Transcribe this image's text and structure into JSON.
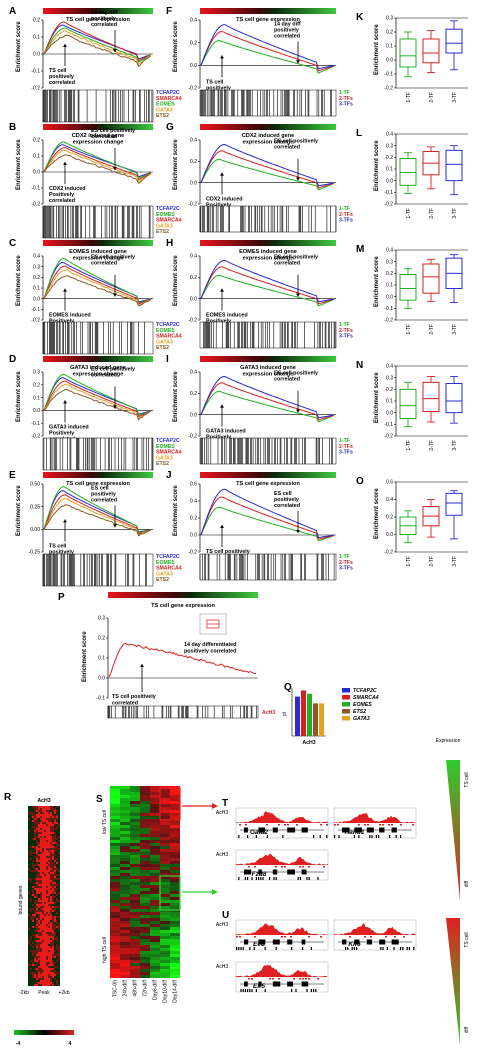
{
  "colors": {
    "TCFAP2C": "#2b2bd0",
    "SMARCA4": "#d42020",
    "EOMES": "#22b022",
    "GATA3": "#e8a020",
    "ETS2": "#8a5a2a",
    "tf1": "#22b022",
    "tf2": "#d42020",
    "tf3": "#2b2bd0",
    "track": "#e02020"
  },
  "y_axis_label": "Enrichment score",
  "left_panels": [
    {
      "label": "A",
      "title": [
        "TS cell gene expression"
      ],
      "ticks": [
        "0.2",
        "0.1",
        "0.0",
        "-0.1",
        "-0.2"
      ],
      "ann_left": [
        "TS cell",
        "positively",
        "correlated"
      ],
      "ann_right": [
        "14 day diff",
        "positively",
        "correlated"
      ],
      "legend": [
        "TCFAP2C",
        "SMARCA4",
        "EOMES",
        "GATA3",
        "ETS2"
      ]
    },
    {
      "label": "B",
      "title": [
        "CDX2 induced gene",
        "expression change"
      ],
      "ticks": [
        "0.2",
        "0.1",
        "0.0",
        "-0.1",
        "-0.2"
      ],
      "ann_left": [
        "CDX2 induced",
        "Positively",
        "correlated"
      ],
      "ann_right": [
        "ES cell positively",
        "correlated"
      ],
      "legend": [
        "TCFAP2C",
        "EOMES",
        "SMARCA4",
        "GATA3",
        "ETS2"
      ]
    },
    {
      "label": "C",
      "title": [
        "EOMES induced gene",
        "expression change"
      ],
      "ticks": [
        "0.4",
        "0.3",
        "0.2",
        "0.1",
        "0.0",
        "-0.1",
        "-0.2"
      ],
      "ann_left": [
        "EOMES induced",
        "Positively",
        "correlated"
      ],
      "ann_right": [
        "ES cell positively",
        "correlated"
      ],
      "legend": [
        "TCFAP2C",
        "EOMES",
        "SMARCA4",
        "GATA3",
        "ETS2"
      ]
    },
    {
      "label": "D",
      "title": [
        "GATA3 induced gene",
        "expression change"
      ],
      "ticks": [
        "0.3",
        "0.2",
        "0.1",
        "0.0",
        "-0.1",
        "-0.2"
      ],
      "ann_left": [
        "GATA3 induced",
        "Positively",
        "correlated"
      ],
      "ann_right": [
        "ES cell positively",
        "correlated"
      ],
      "legend": [
        "TCFAP2C",
        "EOMES",
        "SMARCA4",
        "GATA3",
        "ETS2"
      ]
    },
    {
      "label": "E",
      "title": [
        "TS cell gene expression"
      ],
      "ticks": [
        "0.50",
        "0.25",
        "0.00",
        "-0.25"
      ],
      "ann_left": [
        "TS cell",
        "positively",
        "correlated"
      ],
      "ann_right": [
        "ES cell",
        "positively",
        "correlated"
      ],
      "legend": [
        "TCFAP2C",
        "EOMES",
        "SMARCA4",
        "GATA3",
        "ETS2"
      ]
    }
  ],
  "middle_panels": [
    {
      "label": "F",
      "title": [
        "TS cell gene expression"
      ],
      "ticks": [
        "0.4",
        "0.2",
        "0.0",
        "-0.2"
      ],
      "ann_left": [
        "TS cell",
        "positively",
        "correlated"
      ],
      "ann_right": [
        "14 day diff",
        "positively",
        "correlated"
      ],
      "legend": [
        "1-TF",
        "2-TFs",
        "3-TFs"
      ]
    },
    {
      "label": "G",
      "title": [
        "CDX2 induced gene",
        "expression change"
      ],
      "ticks": [
        "0.4",
        "0.2",
        "0.0",
        "-0.2"
      ],
      "ann_left": [
        "CDX2 induced",
        "Positively",
        "correlated"
      ],
      "ann_right": [
        "ES cell positively",
        "correlated"
      ],
      "legend": [
        "1-TF",
        "2-TFs",
        "3-TFs"
      ]
    },
    {
      "label": "H",
      "title": [
        "EOMES induced gene",
        "expression change"
      ],
      "ticks": [
        "0.4",
        "0.2",
        "0.0",
        "-0.2"
      ],
      "ann_left": [
        "EOMES induced",
        "Positively",
        "correlated"
      ],
      "ann_right": [
        "ES cell positively",
        "correlated"
      ],
      "legend": [
        "1-TF",
        "2-TFs",
        "3-TFs"
      ]
    },
    {
      "label": "I",
      "title": [
        "GATA3 induced gene",
        "expression change"
      ],
      "ticks": [
        "0.4",
        "0.2",
        "0.0",
        "-0.2"
      ],
      "ann_left": [
        "GATA3 induced",
        "Positively",
        "correlated"
      ],
      "ann_right": [
        "ES cell positively",
        "correlated"
      ],
      "legend": [
        "1-TF",
        "2-TFs",
        "3-TFs"
      ]
    },
    {
      "label": "J",
      "title": [
        "TS cell gene expression"
      ],
      "ticks": [
        "0.6",
        "0.4",
        "0.2",
        "0.0",
        "-0.2"
      ],
      "ann_left": [
        "TS cell positively",
        "correlated"
      ],
      "ann_right": [
        "ES cell",
        "positively",
        "correlated"
      ],
      "legend": [
        "1-TF",
        "2-TFs",
        "3-TFs"
      ]
    }
  ],
  "box_panels": [
    {
      "label": "K",
      "ticks": [
        "0.3",
        "0.2",
        "0.1",
        "0.0",
        "-0.1",
        "-0.2"
      ],
      "categories": [
        "1-TF",
        "2-TF",
        "3-TF"
      ],
      "ylim": [
        -0.2,
        0.3
      ],
      "boxes": [
        {
          "min": -0.12,
          "q1": -0.05,
          "med": 0.03,
          "q3": 0.15,
          "max": 0.2
        },
        {
          "min": -0.09,
          "q1": -0.02,
          "med": 0.05,
          "q3": 0.15,
          "max": 0.21
        },
        {
          "min": -0.07,
          "q1": 0.05,
          "med": 0.12,
          "q3": 0.22,
          "max": 0.28
        }
      ]
    },
    {
      "label": "L",
      "ticks": [
        "0.4",
        "0.3",
        "0.2",
        "0.1",
        "0.0",
        "-0.1",
        "-0.2"
      ],
      "categories": [
        "1-TF",
        "2-TF",
        "3-TF"
      ],
      "ylim": [
        -0.2,
        0.4
      ],
      "boxes": [
        {
          "min": -0.11,
          "q1": -0.04,
          "med": 0.07,
          "q3": 0.19,
          "max": 0.24
        },
        {
          "min": -0.07,
          "q1": 0.05,
          "med": 0.15,
          "q3": 0.25,
          "max": 0.29
        },
        {
          "min": -0.12,
          "q1": 0.0,
          "med": 0.14,
          "q3": 0.26,
          "max": 0.3
        }
      ]
    },
    {
      "label": "M",
      "ticks": [
        "0.4",
        "0.3",
        "0.2",
        "0.1",
        "0.0",
        "-0.1",
        "-0.2"
      ],
      "categories": [
        "1-TF",
        "2-TF",
        "3-TF"
      ],
      "ylim": [
        -0.2,
        0.4
      ],
      "boxes": [
        {
          "min": -0.1,
          "q1": -0.03,
          "med": 0.07,
          "q3": 0.19,
          "max": 0.24
        },
        {
          "min": -0.04,
          "q1": 0.03,
          "med": 0.17,
          "q3": 0.28,
          "max": 0.32
        },
        {
          "min": -0.05,
          "q1": 0.07,
          "med": 0.2,
          "q3": 0.33,
          "max": 0.36
        }
      ]
    },
    {
      "label": "N",
      "ticks": [
        "0.4",
        "0.3",
        "0.2",
        "0.1",
        "0.0",
        "-0.1",
        "-0.2"
      ],
      "categories": [
        "1-TF",
        "2-TF",
        "3-TF"
      ],
      "ylim": [
        -0.2,
        0.4
      ],
      "boxes": [
        {
          "min": -0.12,
          "q1": -0.05,
          "med": 0.06,
          "q3": 0.2,
          "max": 0.26
        },
        {
          "min": -0.08,
          "q1": 0.01,
          "med": 0.12,
          "q3": 0.26,
          "max": 0.31
        },
        {
          "min": -0.09,
          "q1": 0.0,
          "med": 0.1,
          "q3": 0.25,
          "max": 0.31
        }
      ]
    },
    {
      "label": "O",
      "ticks": [
        "0.6",
        "0.4",
        "0.2",
        "0.0",
        "-0.2"
      ],
      "categories": [
        "1-TF",
        "2-TF",
        "3-TF"
      ],
      "ylim": [
        -0.2,
        0.6
      ],
      "boxes": [
        {
          "min": -0.09,
          "q1": 0.0,
          "med": 0.1,
          "q3": 0.2,
          "max": 0.27
        },
        {
          "min": -0.03,
          "q1": 0.1,
          "med": 0.21,
          "q3": 0.32,
          "max": 0.4
        },
        {
          "min": -0.05,
          "q1": 0.22,
          "med": 0.36,
          "q3": 0.47,
          "max": 0.5
        }
      ]
    }
  ],
  "panel_p": {
    "label": "P",
    "title": "TS cell gene expression",
    "ticks": [
      "0.3",
      "0.2",
      "0.1",
      "0.0",
      "-0.1"
    ],
    "ann_left": [
      "TS cell positively",
      "correlated"
    ],
    "ann_right": [
      "14 day differentiated",
      "positively correlated"
    ],
    "legend": "AcH3"
  },
  "panel_q": {
    "label": "Q",
    "ylabel": "pl",
    "xlabel": "AcH3",
    "legend": [
      "TCFAP2C",
      "SMARCA4",
      "EOMES",
      "ETS2",
      "GATA3"
    ],
    "values": [
      0.82,
      0.95,
      0.88,
      0.68,
      0.68
    ]
  },
  "panel_r": {
    "label": "R",
    "title": "AcH3",
    "side_label": "bound genes",
    "x_labels": [
      "-2kb",
      "Peak",
      "+2kb"
    ],
    "scale": [
      "-4",
      "4"
    ]
  },
  "panel_s": {
    "label": "S",
    "side_top": "low TS cell",
    "side_bottom": "high TS cell",
    "columns": [
      "TSC-0h",
      "24h-diff",
      "48h-diff",
      "72h-diff",
      "Day6-diff",
      "Day10-diff",
      "Day14-diff"
    ]
  },
  "panel_t": {
    "label": "T",
    "track": "AcH3",
    "genes": [
      "Gata2",
      "Hand1",
      "Fzd8"
    ],
    "expression_title": "Expression",
    "side_top": "TS cell",
    "side_bottom": "diff"
  },
  "panel_u": {
    "label": "U",
    "track": "AcH3",
    "genes": [
      "Eed",
      "Klf5",
      "Elf5"
    ],
    "side_top": "TS cell",
    "side_bottom": "diff"
  }
}
